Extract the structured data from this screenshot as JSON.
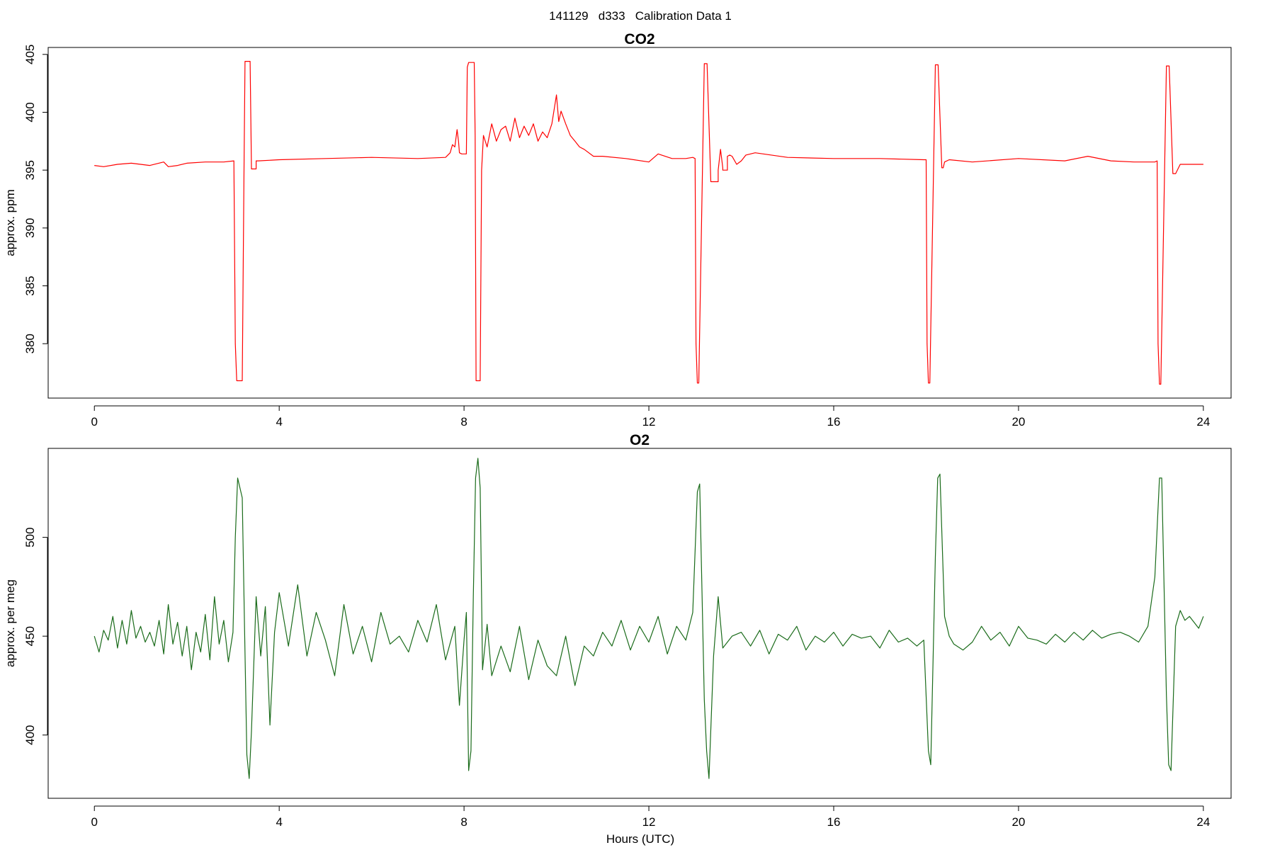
{
  "figure": {
    "title": "141129   d333   Calibration Data 1",
    "xlabel": "Hours (UTC)"
  },
  "chart_data": [
    {
      "type": "line",
      "title": "CO2",
      "ylabel": "approx. ppm",
      "xlim": [
        -1,
        24.6
      ],
      "ylim": [
        375.3,
        405.6
      ],
      "xticks": [
        0,
        4,
        8,
        12,
        16,
        20,
        24
      ],
      "yticks": [
        380,
        385,
        390,
        395,
        400,
        405
      ],
      "color": "#ff0000",
      "series": [
        {
          "x": [
            0.0,
            0.2,
            0.5,
            0.8,
            1.2,
            1.5,
            1.6,
            1.8,
            2.0,
            2.4,
            2.8,
            3.02,
            3.05,
            3.08,
            3.2,
            3.24,
            3.26,
            3.28,
            3.34,
            3.37,
            3.4,
            3.5,
            3.5,
            3.55,
            4.0,
            5.0,
            6.0,
            7.0,
            7.6,
            7.7,
            7.75,
            7.8,
            7.85,
            7.88,
            7.9,
            7.95,
            8.05,
            8.07,
            8.1,
            8.2,
            8.22,
            8.24,
            8.26,
            8.35,
            8.38,
            8.42,
            8.5,
            8.6,
            8.7,
            8.8,
            8.9,
            9.0,
            9.1,
            9.2,
            9.3,
            9.4,
            9.5,
            9.6,
            9.7,
            9.8,
            9.9,
            10.0,
            10.05,
            10.1,
            10.2,
            10.3,
            10.4,
            10.5,
            10.6,
            10.8,
            11.0,
            11.5,
            12.0,
            12.2,
            12.5,
            12.8,
            12.95,
            13.0,
            13.02,
            13.05,
            13.08,
            13.2,
            13.22,
            13.24,
            13.26,
            13.34,
            13.37,
            13.4,
            13.5,
            13.5,
            13.55,
            13.6,
            13.6,
            13.7,
            13.7,
            13.75,
            13.8,
            13.9,
            14.0,
            14.1,
            14.3,
            15.0,
            16.0,
            17.0,
            17.95,
            18.0,
            18.02,
            18.05,
            18.08,
            18.2,
            18.22,
            18.24,
            18.26,
            18.34,
            18.37,
            18.4,
            18.5,
            19.0,
            20.0,
            21.0,
            21.5,
            22.0,
            22.5,
            22.9,
            22.95,
            23.0,
            23.02,
            23.05,
            23.08,
            23.2,
            23.22,
            23.24,
            23.26,
            23.34,
            23.37,
            23.4,
            23.5,
            23.6,
            23.8,
            24.0
          ],
          "y": [
            395.4,
            395.3,
            395.5,
            395.6,
            395.4,
            395.7,
            395.3,
            395.4,
            395.6,
            395.7,
            395.7,
            395.8,
            380.0,
            376.8,
            376.8,
            395.8,
            404.4,
            404.4,
            404.4,
            404.4,
            395.1,
            395.1,
            395.8,
            395.8,
            395.9,
            396.0,
            396.1,
            396.0,
            396.1,
            396.5,
            397.2,
            397.0,
            398.5,
            397.5,
            396.5,
            396.4,
            396.4,
            403.9,
            404.3,
            404.3,
            404.3,
            398.0,
            376.8,
            376.8,
            395.0,
            398.0,
            397.0,
            399.0,
            397.5,
            398.5,
            398.8,
            397.5,
            399.5,
            397.8,
            398.8,
            398.0,
            399.0,
            397.5,
            398.3,
            397.8,
            399.0,
            401.5,
            399.2,
            400.1,
            399.0,
            398.0,
            397.5,
            397.0,
            396.8,
            396.2,
            396.2,
            396.0,
            395.7,
            396.4,
            396.0,
            396.0,
            396.1,
            396.0,
            380.0,
            376.6,
            376.6,
            404.2,
            404.2,
            404.2,
            404.2,
            394.0,
            394.0,
            394.0,
            394.0,
            395.0,
            396.8,
            395.2,
            395.0,
            395.0,
            396.2,
            396.3,
            396.2,
            395.5,
            395.8,
            396.3,
            396.5,
            396.1,
            396.0,
            396.0,
            395.9,
            395.9,
            380.0,
            376.6,
            376.6,
            404.1,
            404.1,
            404.1,
            404.1,
            395.2,
            395.2,
            395.7,
            395.9,
            395.7,
            396.0,
            395.8,
            396.2,
            395.8,
            395.7,
            395.7,
            395.7,
            395.8,
            380.0,
            376.5,
            376.5,
            404.0,
            404.0,
            404.0,
            404.0,
            394.7,
            394.7,
            394.7,
            395.5,
            395.5,
            395.5,
            395.5
          ]
        }
      ]
    },
    {
      "type": "line",
      "title": "O2",
      "ylabel": "approx. per meg",
      "xlim": [
        -1,
        24.6
      ],
      "ylim": [
        368,
        545
      ],
      "xticks": [
        0,
        4,
        8,
        12,
        16,
        20,
        24
      ],
      "yticks": [
        400,
        450,
        500
      ],
      "color": "#1a6b1a",
      "series": [
        {
          "x": [
            0.0,
            0.1,
            0.2,
            0.3,
            0.4,
            0.5,
            0.6,
            0.7,
            0.8,
            0.9,
            1.0,
            1.1,
            1.2,
            1.3,
            1.4,
            1.5,
            1.6,
            1.7,
            1.8,
            1.9,
            2.0,
            2.1,
            2.2,
            2.3,
            2.4,
            2.5,
            2.6,
            2.7,
            2.8,
            2.9,
            3.0,
            3.05,
            3.1,
            3.2,
            3.25,
            3.3,
            3.35,
            3.4,
            3.5,
            3.6,
            3.7,
            3.8,
            3.9,
            4.0,
            4.2,
            4.4,
            4.6,
            4.8,
            5.0,
            5.2,
            5.4,
            5.6,
            5.8,
            6.0,
            6.2,
            6.4,
            6.6,
            6.8,
            7.0,
            7.2,
            7.4,
            7.6,
            7.8,
            7.9,
            8.0,
            8.05,
            8.1,
            8.15,
            8.2,
            8.25,
            8.3,
            8.35,
            8.4,
            8.5,
            8.6,
            8.8,
            9.0,
            9.2,
            9.4,
            9.6,
            9.8,
            10.0,
            10.2,
            10.4,
            10.6,
            10.8,
            11.0,
            11.2,
            11.4,
            11.6,
            11.8,
            12.0,
            12.2,
            12.4,
            12.6,
            12.8,
            12.95,
            13.05,
            13.1,
            13.2,
            13.25,
            13.3,
            13.4,
            13.5,
            13.6,
            13.8,
            14.0,
            14.2,
            14.4,
            14.6,
            14.8,
            15.0,
            15.2,
            15.4,
            15.6,
            15.8,
            16.0,
            16.2,
            16.4,
            16.6,
            16.8,
            17.0,
            17.2,
            17.4,
            17.6,
            17.8,
            17.95,
            18.05,
            18.1,
            18.2,
            18.25,
            18.3,
            18.4,
            18.5,
            18.6,
            18.8,
            19.0,
            19.2,
            19.4,
            19.6,
            19.8,
            20.0,
            20.2,
            20.4,
            20.6,
            20.8,
            21.0,
            21.2,
            21.4,
            21.6,
            21.8,
            22.0,
            22.2,
            22.4,
            22.6,
            22.8,
            22.95,
            23.05,
            23.1,
            23.2,
            23.25,
            23.3,
            23.4,
            23.5,
            23.6,
            23.7,
            23.8,
            23.9,
            24.0
          ],
          "y": [
            450,
            442,
            453,
            448,
            460,
            444,
            458,
            446,
            463,
            449,
            455,
            447,
            452,
            445,
            458,
            441,
            466,
            446,
            457,
            440,
            455,
            433,
            452,
            442,
            461,
            438,
            470,
            446,
            458,
            437,
            452,
            500,
            530,
            520,
            455,
            390,
            378,
            402,
            470,
            440,
            465,
            405,
            452,
            472,
            445,
            476,
            440,
            462,
            448,
            430,
            466,
            441,
            455,
            437,
            462,
            446,
            450,
            442,
            458,
            447,
            466,
            438,
            455,
            415,
            448,
            462,
            382,
            392,
            470,
            530,
            540,
            525,
            433,
            456,
            430,
            445,
            432,
            455,
            428,
            448,
            435,
            430,
            450,
            425,
            445,
            440,
            452,
            445,
            458,
            443,
            455,
            447,
            460,
            441,
            455,
            448,
            462,
            523,
            527,
            418,
            392,
            378,
            440,
            470,
            444,
            450,
            452,
            445,
            453,
            441,
            451,
            448,
            455,
            443,
            450,
            447,
            452,
            445,
            451,
            449,
            450,
            444,
            453,
            447,
            449,
            445,
            448,
            392,
            385,
            490,
            530,
            532,
            460,
            450,
            446,
            443,
            447,
            455,
            448,
            452,
            445,
            455,
            449,
            448,
            446,
            451,
            447,
            452,
            448,
            453,
            449,
            451,
            452,
            450,
            447,
            455,
            480,
            530,
            530,
            420,
            385,
            382,
            455,
            463,
            458,
            460,
            457,
            454,
            460
          ]
        }
      ]
    }
  ]
}
